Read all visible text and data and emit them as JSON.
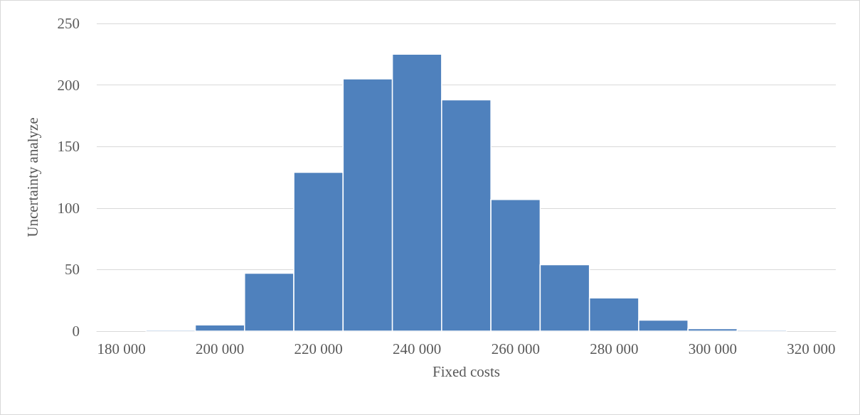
{
  "chart_data": {
    "type": "histogram",
    "xlabel": "Fixed costs",
    "ylabel": "Uncertainty analyze",
    "bins": [
      185000,
      195000,
      205000,
      215000,
      225000,
      235000,
      245000,
      255000,
      265000,
      275000,
      285000,
      295000,
      305000,
      315000
    ],
    "values": [
      1,
      5,
      47,
      129,
      205,
      225,
      188,
      107,
      54,
      27,
      9,
      2,
      1
    ],
    "color": "#4f81bd",
    "xlim": [
      175000,
      325000
    ],
    "xticks": [
      {
        "value": 180000,
        "label": "180 000"
      },
      {
        "value": 200000,
        "label": "200 000"
      },
      {
        "value": 220000,
        "label": "220 000"
      },
      {
        "value": 240000,
        "label": "240 000"
      },
      {
        "value": 260000,
        "label": "260 000"
      },
      {
        "value": 280000,
        "label": "280 000"
      },
      {
        "value": 300000,
        "label": "300 000"
      },
      {
        "value": 320000,
        "label": "320 000"
      }
    ],
    "ylim": [
      0,
      250
    ],
    "yticks": [
      0,
      50,
      100,
      150,
      200,
      250
    ],
    "grid": "y"
  }
}
